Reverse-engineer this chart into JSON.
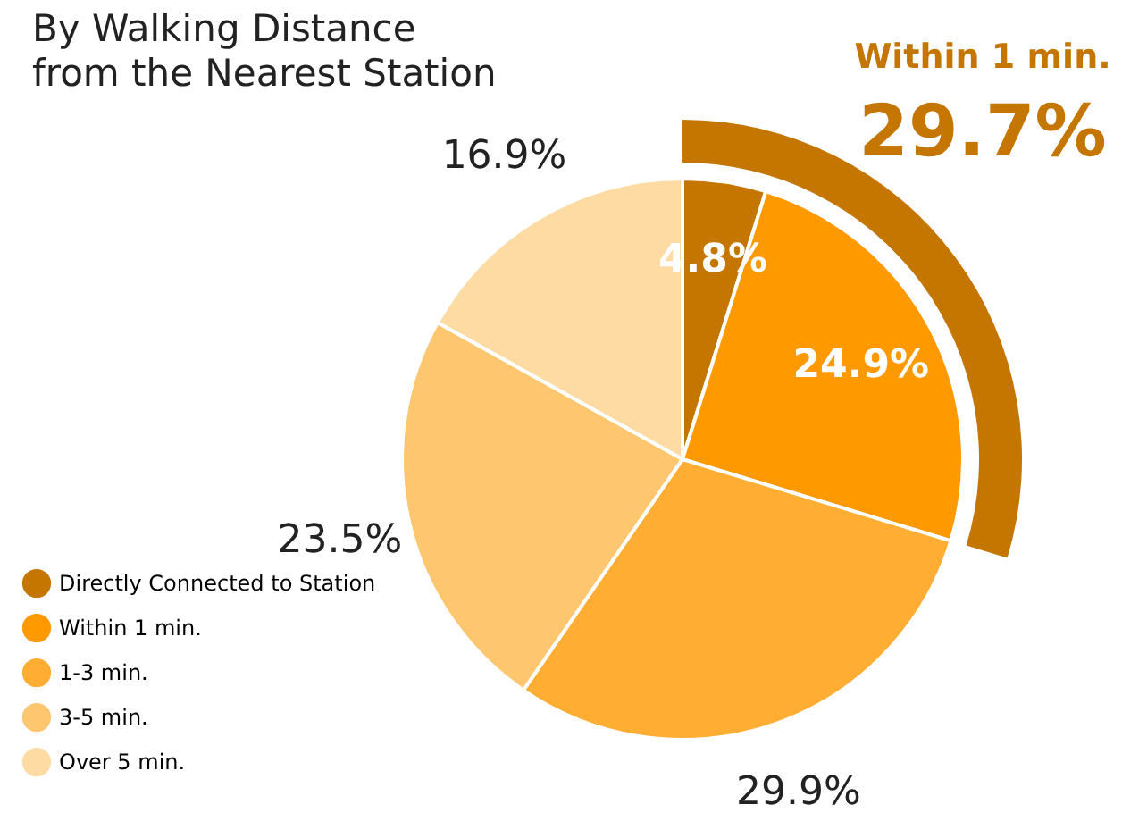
{
  "chart_data": {
    "type": "pie",
    "title": "By Walking Distance\nfrom the Nearest Station",
    "categories": [
      "Directly Connected to Station",
      "Within 1 min.",
      "1-3 min.",
      "3-5 min.",
      "Over 5 min."
    ],
    "values": [
      4.8,
      24.9,
      29.9,
      23.5,
      16.9
    ],
    "colors": [
      "#c47600",
      "#ff9900",
      "#ffad33",
      "#ffc670",
      "#ffdba4"
    ],
    "value_labels": [
      "4.8%",
      "24.9%",
      "29.9%",
      "23.5%",
      "16.9%"
    ],
    "annotations": [
      "Within 1 min.",
      "29.7%"
    ],
    "legend": "bottom left"
  }
}
